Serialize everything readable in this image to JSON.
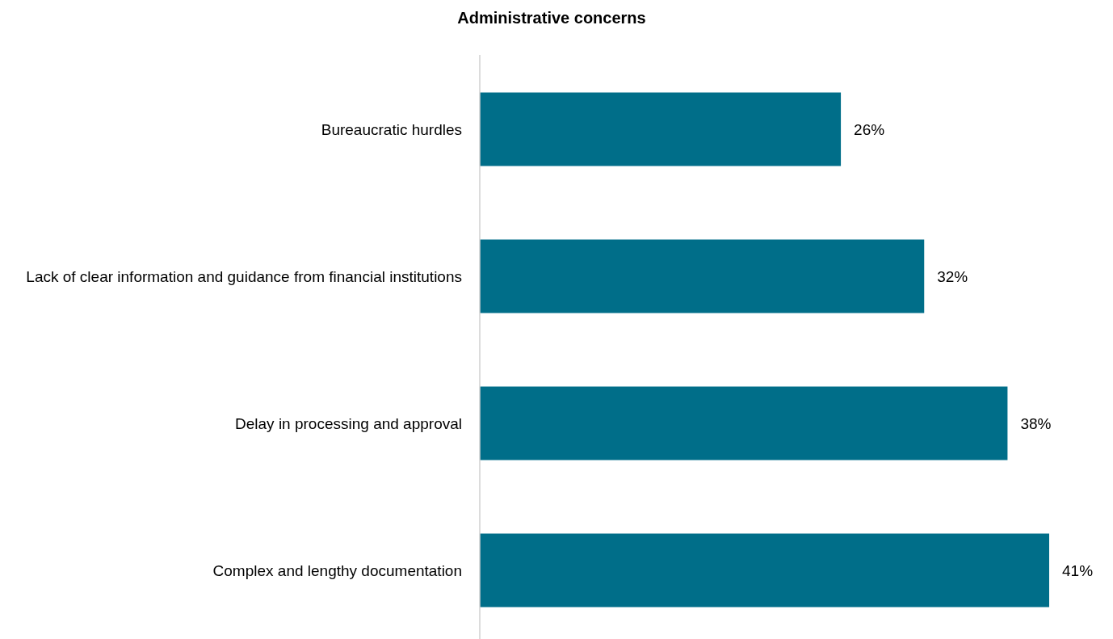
{
  "chart_data": {
    "type": "bar",
    "orientation": "horizontal",
    "title": "Administrative concerns",
    "categories": [
      "Bureaucratic hurdles",
      "Lack of clear information and guidance from financial institutions",
      "Delay in processing and approval",
      "Complex and lengthy documentation"
    ],
    "values": [
      26,
      32,
      38,
      41
    ],
    "value_labels": [
      "26%",
      "32%",
      "38%",
      "41%"
    ],
    "color": "#006e89"
  }
}
